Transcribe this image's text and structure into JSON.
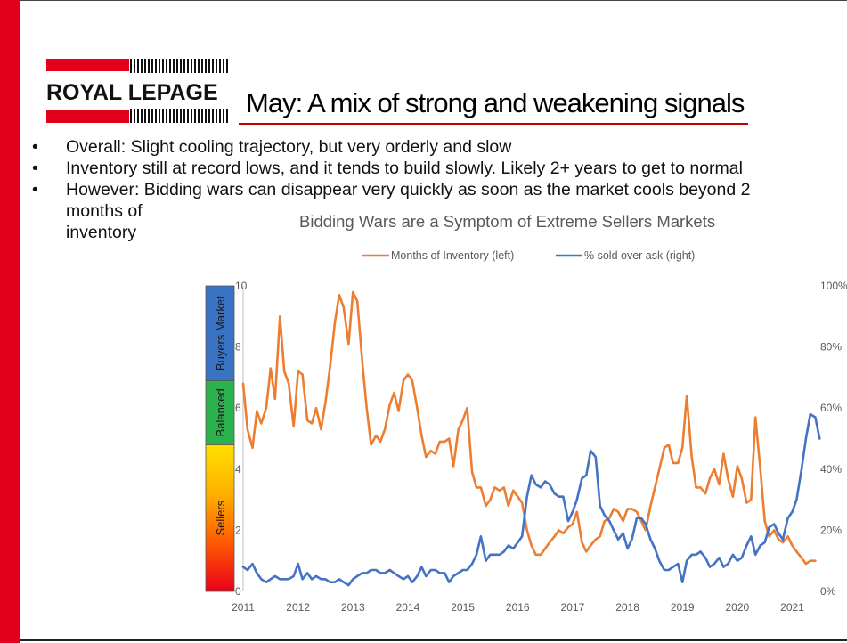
{
  "slide": {
    "logo_text": "ROYAL LEPAGE",
    "title": "May: A mix of strong and weakening signals",
    "bullets": [
      "Overall:  Slight cooling trajectory, but very orderly and slow",
      "Inventory still at record lows, and it tends to build slowly. Likely 2+ years to get to normal",
      "However: Bidding wars can disappear very quickly as soon as the market cools beyond 2 months of inventory"
    ],
    "bullet_symbol": "•",
    "colors": {
      "brand_red": "#e2001a",
      "orange": "#ed7d31",
      "blue": "#4472c4"
    }
  },
  "chart_data": {
    "type": "line",
    "title": "Bidding Wars are a Symptom of Extreme Sellers Markets",
    "x_tick_labels": [
      "2011",
      "2012",
      "2013",
      "2014",
      "2015",
      "2016",
      "2017",
      "2018",
      "2019",
      "2020",
      "2021"
    ],
    "x_range": [
      2011,
      2021.3
    ],
    "y_left": {
      "ticks": [
        "0",
        "2",
        "4",
        "6",
        "8",
        "10"
      ],
      "range": [
        0,
        10
      ]
    },
    "y_right": {
      "ticks": [
        "0%",
        "20%",
        "40%",
        "60%",
        "80%",
        "100%"
      ],
      "range": [
        0,
        100
      ]
    },
    "legend_position": "top",
    "grid": false,
    "bands": [
      {
        "label": "Sellers",
        "from": 0,
        "to": 4.8,
        "gradient": [
          "#e8001c",
          "#ff5a00",
          "#ffb000",
          "#ffe000"
        ]
      },
      {
        "label": "Balanced",
        "from": 4.8,
        "to": 6.9,
        "color": "#2bb24c"
      },
      {
        "label": "Buyers Market",
        "from": 6.9,
        "to": 10,
        "color": "#3b73c4"
      }
    ],
    "series": [
      {
        "name": "Months of Inventory (left)",
        "axis": "left",
        "color": "#ed7d31",
        "points": [
          [
            2011.0,
            6.8
          ],
          [
            2011.08,
            5.3
          ],
          [
            2011.17,
            4.7
          ],
          [
            2011.25,
            5.9
          ],
          [
            2011.33,
            5.5
          ],
          [
            2011.42,
            6.0
          ],
          [
            2011.5,
            7.3
          ],
          [
            2011.58,
            6.3
          ],
          [
            2011.67,
            9.0
          ],
          [
            2011.75,
            7.2
          ],
          [
            2011.83,
            6.8
          ],
          [
            2011.92,
            5.4
          ],
          [
            2012.0,
            7.2
          ],
          [
            2012.08,
            7.1
          ],
          [
            2012.17,
            5.6
          ],
          [
            2012.25,
            5.5
          ],
          [
            2012.33,
            6.0
          ],
          [
            2012.42,
            5.3
          ],
          [
            2012.5,
            6.2
          ],
          [
            2012.58,
            7.3
          ],
          [
            2012.67,
            8.8
          ],
          [
            2012.75,
            9.7
          ],
          [
            2012.83,
            9.3
          ],
          [
            2012.92,
            8.1
          ],
          [
            2013.0,
            9.8
          ],
          [
            2013.08,
            9.5
          ],
          [
            2013.17,
            7.5
          ],
          [
            2013.25,
            6.0
          ],
          [
            2013.33,
            4.8
          ],
          [
            2013.42,
            5.1
          ],
          [
            2013.5,
            4.9
          ],
          [
            2013.58,
            5.3
          ],
          [
            2013.67,
            6.1
          ],
          [
            2013.75,
            6.5
          ],
          [
            2013.83,
            5.9
          ],
          [
            2013.92,
            6.9
          ],
          [
            2014.0,
            7.1
          ],
          [
            2014.08,
            6.9
          ],
          [
            2014.17,
            6.0
          ],
          [
            2014.25,
            5.1
          ],
          [
            2014.33,
            4.4
          ],
          [
            2014.42,
            4.6
          ],
          [
            2014.5,
            4.5
          ],
          [
            2014.58,
            4.9
          ],
          [
            2014.67,
            4.9
          ],
          [
            2014.75,
            5.0
          ],
          [
            2014.83,
            4.1
          ],
          [
            2014.92,
            5.3
          ],
          [
            2015.0,
            5.6
          ],
          [
            2015.08,
            6.0
          ],
          [
            2015.17,
            3.9
          ],
          [
            2015.25,
            3.4
          ],
          [
            2015.33,
            3.4
          ],
          [
            2015.42,
            2.8
          ],
          [
            2015.5,
            3.0
          ],
          [
            2015.58,
            3.4
          ],
          [
            2015.67,
            3.3
          ],
          [
            2015.75,
            3.4
          ],
          [
            2015.83,
            2.8
          ],
          [
            2015.92,
            3.3
          ],
          [
            2016.0,
            3.1
          ],
          [
            2016.08,
            2.9
          ],
          [
            2016.17,
            2.0
          ],
          [
            2016.25,
            1.5
          ],
          [
            2016.33,
            1.2
          ],
          [
            2016.42,
            1.2
          ],
          [
            2016.5,
            1.4
          ],
          [
            2016.58,
            1.6
          ],
          [
            2016.67,
            1.8
          ],
          [
            2016.75,
            2.0
          ],
          [
            2016.83,
            1.9
          ],
          [
            2016.92,
            2.1
          ],
          [
            2017.0,
            2.2
          ],
          [
            2017.08,
            2.6
          ],
          [
            2017.17,
            1.6
          ],
          [
            2017.25,
            1.3
          ],
          [
            2017.33,
            1.5
          ],
          [
            2017.42,
            1.7
          ],
          [
            2017.5,
            1.8
          ],
          [
            2017.58,
            2.3
          ],
          [
            2017.67,
            2.4
          ],
          [
            2017.75,
            2.7
          ],
          [
            2017.83,
            2.6
          ],
          [
            2017.92,
            2.3
          ],
          [
            2018.0,
            2.7
          ],
          [
            2018.08,
            2.7
          ],
          [
            2018.17,
            2.6
          ],
          [
            2018.25,
            2.3
          ],
          [
            2018.33,
            2.0
          ],
          [
            2018.42,
            2.8
          ],
          [
            2018.5,
            3.4
          ],
          [
            2018.58,
            4.0
          ],
          [
            2018.67,
            4.7
          ],
          [
            2018.75,
            4.8
          ],
          [
            2018.83,
            4.2
          ],
          [
            2018.92,
            4.2
          ],
          [
            2019.0,
            4.7
          ],
          [
            2019.08,
            6.4
          ],
          [
            2019.17,
            4.4
          ],
          [
            2019.25,
            3.4
          ],
          [
            2019.33,
            3.4
          ],
          [
            2019.42,
            3.2
          ],
          [
            2019.5,
            3.7
          ],
          [
            2019.58,
            4.0
          ],
          [
            2019.67,
            3.5
          ],
          [
            2019.75,
            4.5
          ],
          [
            2019.83,
            3.7
          ],
          [
            2019.92,
            3.1
          ],
          [
            2020.0,
            4.1
          ],
          [
            2020.08,
            3.7
          ],
          [
            2020.17,
            2.9
          ],
          [
            2020.25,
            3.0
          ],
          [
            2020.33,
            5.7
          ],
          [
            2020.42,
            4.0
          ],
          [
            2020.5,
            2.3
          ],
          [
            2020.58,
            1.8
          ],
          [
            2020.67,
            2.0
          ],
          [
            2020.75,
            1.7
          ],
          [
            2020.83,
            1.6
          ],
          [
            2020.92,
            1.8
          ],
          [
            2021.0,
            1.5
          ],
          [
            2021.08,
            1.3
          ],
          [
            2021.17,
            1.1
          ],
          [
            2021.25,
            0.9
          ],
          [
            2021.33,
            1.0
          ],
          [
            2021.42,
            1.0
          ]
        ]
      },
      {
        "name": "% sold over ask (right)",
        "axis": "right",
        "color": "#4472c4",
        "points": [
          [
            2011.0,
            8
          ],
          [
            2011.08,
            7
          ],
          [
            2011.17,
            9
          ],
          [
            2011.25,
            6
          ],
          [
            2011.33,
            4
          ],
          [
            2011.42,
            3
          ],
          [
            2011.5,
            4
          ],
          [
            2011.58,
            5
          ],
          [
            2011.67,
            4
          ],
          [
            2011.75,
            4
          ],
          [
            2011.83,
            4
          ],
          [
            2011.92,
            5
          ],
          [
            2012.0,
            9
          ],
          [
            2012.08,
            4
          ],
          [
            2012.17,
            6
          ],
          [
            2012.25,
            4
          ],
          [
            2012.33,
            5
          ],
          [
            2012.42,
            4
          ],
          [
            2012.5,
            4
          ],
          [
            2012.58,
            3
          ],
          [
            2012.67,
            3
          ],
          [
            2012.75,
            4
          ],
          [
            2012.83,
            3
          ],
          [
            2012.92,
            2
          ],
          [
            2013.0,
            4
          ],
          [
            2013.08,
            5
          ],
          [
            2013.17,
            6
          ],
          [
            2013.25,
            6
          ],
          [
            2013.33,
            7
          ],
          [
            2013.42,
            7
          ],
          [
            2013.5,
            6
          ],
          [
            2013.58,
            6
          ],
          [
            2013.67,
            7
          ],
          [
            2013.75,
            6
          ],
          [
            2013.83,
            5
          ],
          [
            2013.92,
            4
          ],
          [
            2014.0,
            5
          ],
          [
            2014.08,
            3
          ],
          [
            2014.17,
            5
          ],
          [
            2014.25,
            8
          ],
          [
            2014.33,
            5
          ],
          [
            2014.42,
            7
          ],
          [
            2014.5,
            7
          ],
          [
            2014.58,
            6
          ],
          [
            2014.67,
            6
          ],
          [
            2014.75,
            3
          ],
          [
            2014.83,
            5
          ],
          [
            2014.92,
            6
          ],
          [
            2015.0,
            7
          ],
          [
            2015.08,
            7
          ],
          [
            2015.17,
            9
          ],
          [
            2015.25,
            12
          ],
          [
            2015.33,
            18
          ],
          [
            2015.42,
            10
          ],
          [
            2015.5,
            12
          ],
          [
            2015.58,
            12
          ],
          [
            2015.67,
            12
          ],
          [
            2015.75,
            13
          ],
          [
            2015.83,
            15
          ],
          [
            2015.92,
            14
          ],
          [
            2016.0,
            16
          ],
          [
            2016.08,
            18
          ],
          [
            2016.17,
            31
          ],
          [
            2016.25,
            38
          ],
          [
            2016.33,
            35
          ],
          [
            2016.42,
            34
          ],
          [
            2016.5,
            36
          ],
          [
            2016.58,
            35
          ],
          [
            2016.67,
            32
          ],
          [
            2016.75,
            31
          ],
          [
            2016.83,
            31
          ],
          [
            2016.92,
            23
          ],
          [
            2017.0,
            26
          ],
          [
            2017.08,
            30
          ],
          [
            2017.17,
            37
          ],
          [
            2017.25,
            38
          ],
          [
            2017.33,
            46
          ],
          [
            2017.42,
            44
          ],
          [
            2017.5,
            28
          ],
          [
            2017.58,
            25
          ],
          [
            2017.67,
            23
          ],
          [
            2017.75,
            20
          ],
          [
            2017.83,
            17
          ],
          [
            2017.92,
            19
          ],
          [
            2018.0,
            14
          ],
          [
            2018.08,
            17
          ],
          [
            2018.17,
            24
          ],
          [
            2018.25,
            24
          ],
          [
            2018.33,
            22
          ],
          [
            2018.42,
            17
          ],
          [
            2018.5,
            14
          ],
          [
            2018.58,
            10
          ],
          [
            2018.67,
            7
          ],
          [
            2018.75,
            7
          ],
          [
            2018.83,
            8
          ],
          [
            2018.92,
            9
          ],
          [
            2019.0,
            3
          ],
          [
            2019.08,
            10
          ],
          [
            2019.17,
            12
          ],
          [
            2019.25,
            12
          ],
          [
            2019.33,
            13
          ],
          [
            2019.42,
            11
          ],
          [
            2019.5,
            8
          ],
          [
            2019.58,
            9
          ],
          [
            2019.67,
            11
          ],
          [
            2019.75,
            8
          ],
          [
            2019.83,
            9
          ],
          [
            2019.92,
            12
          ],
          [
            2020.0,
            10
          ],
          [
            2020.08,
            11
          ],
          [
            2020.17,
            15
          ],
          [
            2020.25,
            18
          ],
          [
            2020.33,
            12
          ],
          [
            2020.42,
            15
          ],
          [
            2020.5,
            16
          ],
          [
            2020.58,
            21
          ],
          [
            2020.67,
            22
          ],
          [
            2020.75,
            19
          ],
          [
            2020.83,
            17
          ],
          [
            2020.92,
            24
          ],
          [
            2021.0,
            26
          ],
          [
            2021.08,
            30
          ],
          [
            2021.17,
            40
          ],
          [
            2021.25,
            50
          ],
          [
            2021.33,
            58
          ],
          [
            2021.42,
            57
          ],
          [
            2021.5,
            50
          ]
        ]
      }
    ]
  }
}
